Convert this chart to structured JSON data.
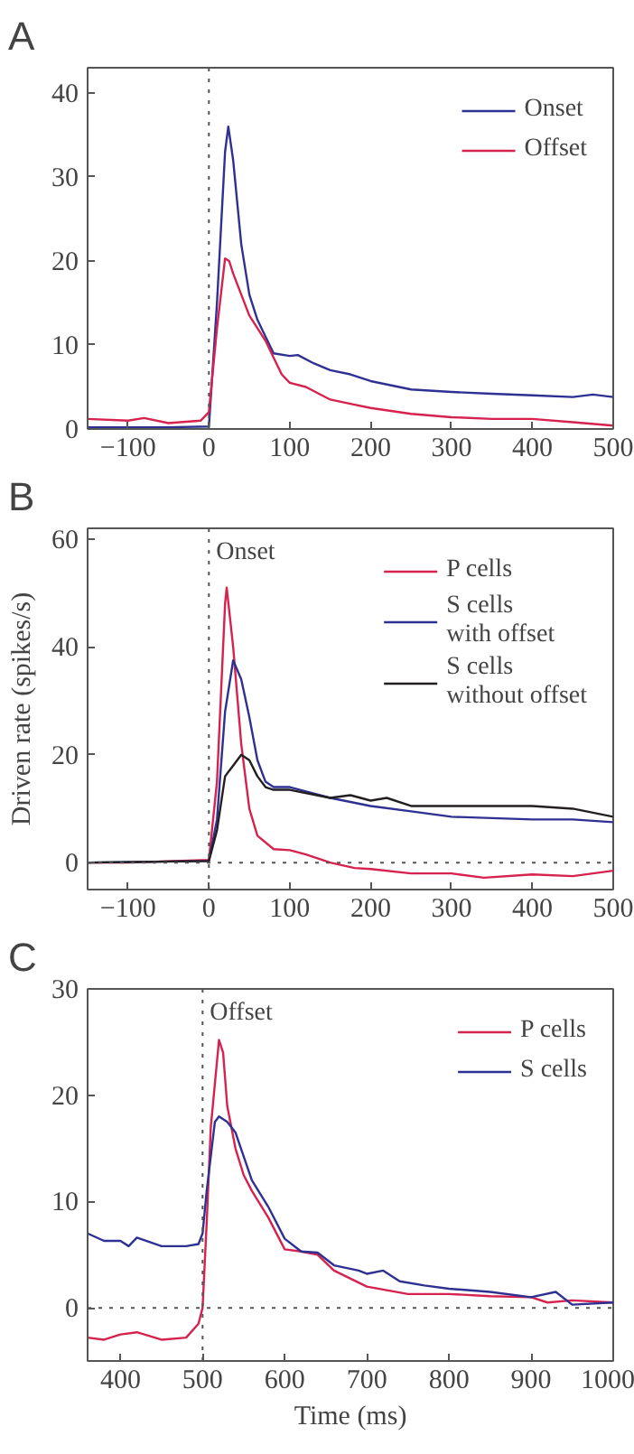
{
  "chart_data": [
    {
      "type": "line",
      "title": "A",
      "xlim": [
        -150,
        500
      ],
      "ylim": [
        0,
        43
      ],
      "xticks": [
        -100,
        0,
        100,
        200,
        300,
        400,
        500
      ],
      "yticks": [
        0,
        10,
        20,
        30,
        40
      ],
      "grid": false,
      "legend": "top right",
      "line_style": "solid",
      "ref_lines": [
        {
          "axis": "x",
          "value": 0,
          "color": "#555555",
          "line_style": "dotted"
        }
      ],
      "series": [
        {
          "name": "Onset",
          "color": "#2e3192",
          "x": [
            -150,
            -100,
            -50,
            0,
            10,
            20,
            24,
            30,
            40,
            50,
            60,
            70,
            80,
            100,
            110,
            130,
            150,
            175,
            200,
            250,
            300,
            350,
            400,
            450,
            475,
            500
          ],
          "values": [
            0.2,
            0.2,
            0.2,
            0.3,
            15,
            33,
            36,
            32,
            22,
            16,
            13,
            11,
            9,
            8.7,
            8.8,
            7.8,
            7,
            6.5,
            5.7,
            4.7,
            4.4,
            4.2,
            4.0,
            3.8,
            4.1,
            3.8
          ]
        },
        {
          "name": "Offset",
          "color": "#d6224f",
          "x": [
            -150,
            -100,
            -80,
            -50,
            -10,
            0,
            10,
            20,
            25,
            30,
            40,
            50,
            60,
            70,
            80,
            90,
            100,
            120,
            150,
            175,
            200,
            250,
            300,
            350,
            400,
            450,
            500
          ],
          "values": [
            1.2,
            1,
            1.3,
            0.7,
            1,
            2,
            12,
            20.3,
            20,
            18.5,
            16,
            13.5,
            12,
            10.5,
            8.5,
            6.5,
            5.5,
            5,
            3.5,
            3,
            2.5,
            1.8,
            1.4,
            1.2,
            1.2,
            0.8,
            0.4
          ]
        }
      ]
    },
    {
      "type": "line",
      "title": "B",
      "ylabel": "Driven rate (spikes/s)",
      "xlim": [
        -150,
        500
      ],
      "ylim": [
        -5,
        62
      ],
      "xticks": [
        -100,
        0,
        100,
        200,
        300,
        400,
        500
      ],
      "yticks": [
        0,
        20,
        40,
        60
      ],
      "grid": false,
      "legend": "top right",
      "line_style": "solid",
      "ref_lines": [
        {
          "axis": "x",
          "value": 0,
          "label": "Onset",
          "color": "#555555",
          "line_style": "dotted"
        },
        {
          "axis": "y",
          "value": 0,
          "color": "#555555",
          "line_style": "dotted"
        }
      ],
      "series": [
        {
          "name": "P cells",
          "color": "#d6224f",
          "x": [
            -150,
            -100,
            0,
            10,
            20,
            22,
            30,
            40,
            50,
            60,
            80,
            100,
            120,
            150,
            180,
            200,
            250,
            300,
            340,
            400,
            450,
            500
          ],
          "values": [
            0,
            0,
            0.5,
            15,
            48,
            51,
            40,
            22,
            10,
            5,
            2.5,
            2.3,
            1.5,
            0,
            -1,
            -1.2,
            -2,
            -2,
            -2.8,
            -2.2,
            -2.5,
            -1.5
          ]
        },
        {
          "name": "S cells\nwith offset",
          "color": "#2e3192",
          "x": [
            -150,
            0,
            10,
            20,
            30,
            40,
            50,
            60,
            70,
            80,
            100,
            150,
            200,
            250,
            300,
            400,
            450,
            500
          ],
          "values": [
            0,
            0.3,
            8,
            28,
            37.5,
            34,
            27,
            19,
            15,
            14,
            14,
            12,
            10.5,
            9.5,
            8.5,
            8,
            8,
            7.5
          ]
        },
        {
          "name": "S cells\nwithout offset",
          "color": "#231f20",
          "x": [
            -150,
            0,
            10,
            20,
            30,
            40,
            50,
            60,
            70,
            80,
            100,
            150,
            175,
            200,
            220,
            250,
            300,
            350,
            400,
            450,
            500
          ],
          "values": [
            0,
            0.3,
            6,
            16,
            18,
            20,
            19,
            16,
            14,
            13.5,
            13.5,
            12,
            12.5,
            11.5,
            12,
            10.5,
            10.5,
            10.5,
            10.5,
            10,
            8.5
          ]
        }
      ]
    },
    {
      "type": "line",
      "title": "C",
      "xlabel": "Time (ms)",
      "xlim": [
        360,
        1000
      ],
      "ylim": [
        -5,
        30
      ],
      "xticks": [
        400,
        500,
        600,
        700,
        800,
        900,
        1000
      ],
      "yticks": [
        0,
        10,
        20,
        30
      ],
      "grid": false,
      "legend": "top right",
      "line_style": "solid",
      "ref_lines": [
        {
          "axis": "x",
          "value": 500,
          "label": "Offset",
          "color": "#555555",
          "line_style": "dotted"
        },
        {
          "axis": "y",
          "value": 0,
          "color": "#555555",
          "line_style": "dotted"
        }
      ],
      "series": [
        {
          "name": "P cells",
          "color": "#d6224f",
          "x": [
            360,
            380,
            400,
            420,
            450,
            480,
            495,
            500,
            505,
            510,
            520,
            525,
            530,
            540,
            550,
            560,
            580,
            600,
            620,
            640,
            660,
            700,
            750,
            800,
            850,
            900,
            920,
            950,
            1000
          ],
          "values": [
            -2.8,
            -3,
            -2.5,
            -2.3,
            -3,
            -2.8,
            -1.5,
            0,
            8,
            17,
            25.2,
            24,
            19,
            15,
            12.5,
            11,
            8.5,
            5.5,
            5.3,
            5,
            3.5,
            2,
            1.3,
            1.3,
            1.1,
            1,
            0.5,
            0.7,
            0.5
          ]
        },
        {
          "name": "S cells",
          "color": "#2e3192",
          "x": [
            360,
            380,
            400,
            410,
            420,
            450,
            480,
            495,
            500,
            505,
            515,
            520,
            530,
            540,
            560,
            580,
            600,
            620,
            640,
            660,
            690,
            700,
            720,
            740,
            770,
            800,
            850,
            900,
            930,
            950,
            1000
          ],
          "values": [
            7,
            6.3,
            6.3,
            5.8,
            6.6,
            5.8,
            5.8,
            6,
            7,
            11,
            17.5,
            18,
            17.5,
            16.5,
            12,
            9.5,
            6.5,
            5.3,
            5.2,
            4,
            3.5,
            3.2,
            3.5,
            2.5,
            2.1,
            1.8,
            1.5,
            1,
            1.5,
            0.3,
            0.5
          ]
        }
      ]
    }
  ]
}
